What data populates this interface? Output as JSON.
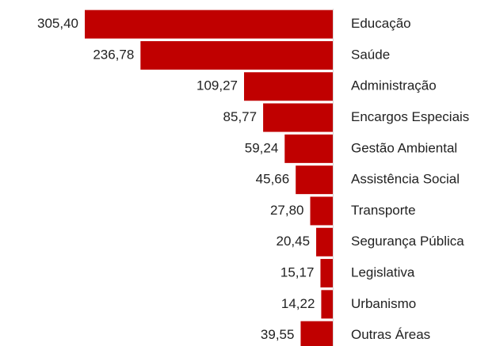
{
  "chart_data": {
    "type": "bar",
    "orientation": "horizontal",
    "categories": [
      "Educação",
      "Saúde",
      "Administração",
      "Encargos Especiais",
      "Gestão Ambiental",
      "Assistência Social",
      "Transporte",
      "Segurança Pública",
      "Legislativa",
      "Urbanismo",
      "Outras Áreas"
    ],
    "values": [
      305.4,
      236.78,
      109.27,
      85.77,
      59.24,
      45.66,
      27.8,
      20.45,
      15.17,
      14.22,
      39.55
    ],
    "value_labels": [
      "305,40",
      "236,78",
      "109,27",
      "85,77",
      "59,24",
      "45,66",
      "27,80",
      "20,45",
      "15,17",
      "14,22",
      "39,55"
    ],
    "color": "#c00000"
  }
}
